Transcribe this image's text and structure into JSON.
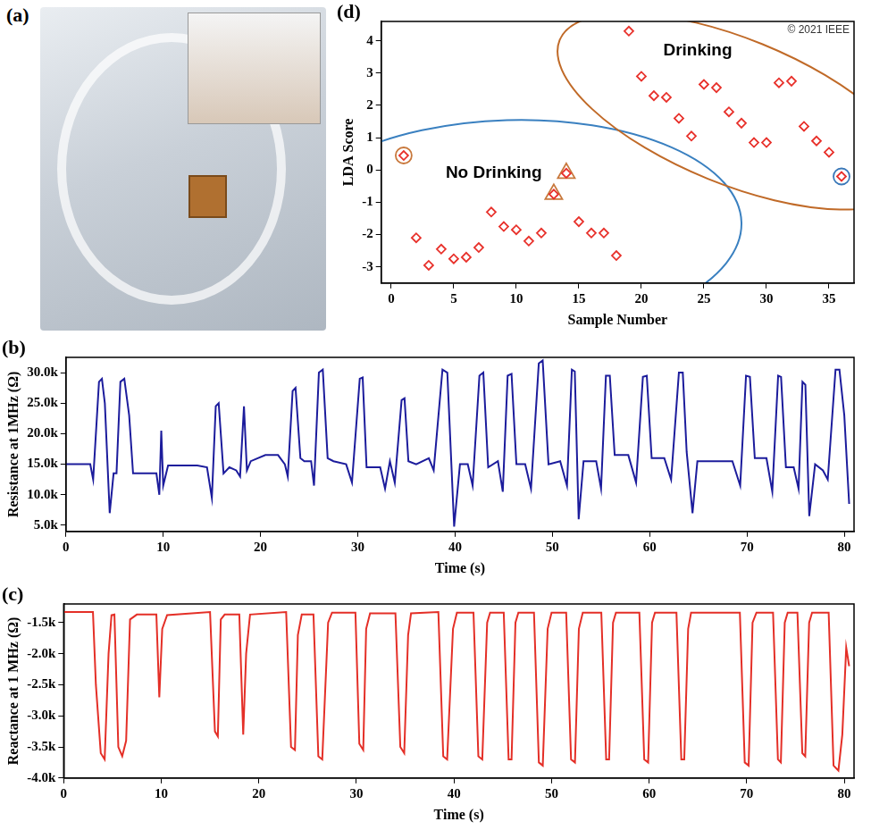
{
  "chart_data": [
    {
      "panel": "(a)",
      "type": "photo"
    },
    {
      "panel": "(b)",
      "type": "line",
      "y_label": "Resistance at 1MHz (Ω)",
      "x_label": "Time (s)",
      "color": "#1c1c9c",
      "grid": false,
      "xlim": [
        0,
        81
      ],
      "xticks": [
        0,
        10,
        20,
        30,
        40,
        50,
        60,
        70,
        80
      ],
      "ylim": [
        4000,
        32500
      ],
      "yticks": [
        {
          "value": 5000,
          "label": "5.0k"
        },
        {
          "value": 10000,
          "label": "10.0k"
        },
        {
          "value": 15000,
          "label": "15.0k"
        },
        {
          "value": 20000,
          "label": "20.0k"
        },
        {
          "value": 25000,
          "label": "25.0k"
        },
        {
          "value": 30000,
          "label": "30.0k"
        }
      ],
      "series": [
        {
          "color": "#1c1c9c",
          "x": [
            0,
            2.5,
            2.8,
            3.4,
            3.7,
            4.0,
            4.5,
            4.9,
            5.2,
            5.6,
            6.0,
            6.5,
            6.9,
            8.5,
            9.3,
            9.6,
            9.8,
            10.0,
            10.5,
            13.5,
            14.5,
            15.0,
            15.4,
            15.7,
            16.2,
            16.8,
            17.5,
            17.9,
            18.3,
            18.6,
            19.0,
            20.5,
            21.8,
            22.5,
            22.8,
            23.3,
            23.6,
            24.1,
            24.5,
            25.2,
            25.5,
            26.0,
            26.4,
            26.9,
            27.5,
            28.8,
            29.4,
            30.2,
            30.5,
            30.9,
            31.5,
            32.3,
            32.8,
            33.3,
            33.8,
            34.5,
            34.8,
            35.2,
            36.0,
            37.3,
            37.8,
            38.7,
            39.2,
            39.9,
            40.5,
            41.3,
            41.8,
            42.5,
            42.9,
            43.4,
            44.4,
            44.9,
            45.4,
            45.8,
            46.3,
            47.2,
            47.8,
            48.6,
            49.0,
            49.6,
            50.8,
            51.5,
            52.0,
            52.3,
            52.7,
            53.2,
            54.5,
            55.0,
            55.5,
            55.9,
            56.4,
            57.8,
            58.6,
            59.3,
            59.7,
            60.2,
            61.5,
            62.2,
            63.0,
            63.4,
            63.8,
            64.4,
            64.9,
            68.5,
            69.3,
            69.9,
            70.3,
            70.8,
            72.0,
            72.6,
            73.2,
            73.5,
            74.0,
            74.8,
            75.3,
            75.7,
            76.0,
            76.4,
            77.0,
            77.8,
            78.3,
            79.1,
            79.5,
            80.0,
            80.5
          ],
          "values": [
            15000,
            15000,
            12500,
            28500,
            29000,
            25000,
            7000,
            13500,
            13500,
            28500,
            29000,
            23000,
            13500,
            13500,
            13500,
            10000,
            20500,
            11500,
            14800,
            14800,
            14500,
            9500,
            24500,
            25000,
            13500,
            14500,
            14000,
            13000,
            24500,
            14000,
            15500,
            16500,
            16500,
            15000,
            13000,
            27000,
            27500,
            16000,
            15500,
            15500,
            11500,
            30000,
            30500,
            16000,
            15500,
            15000,
            12000,
            29000,
            29200,
            14500,
            14500,
            14500,
            11000,
            15500,
            12000,
            25500,
            25800,
            15500,
            15000,
            16000,
            14000,
            30500,
            30000,
            4800,
            15000,
            15000,
            11500,
            29500,
            30000,
            14500,
            15500,
            10500,
            29500,
            29800,
            15000,
            15000,
            11000,
            31500,
            32000,
            15000,
            15500,
            11500,
            30500,
            30200,
            6000,
            15500,
            15500,
            11000,
            29500,
            29500,
            16500,
            16500,
            12000,
            29300,
            29500,
            16000,
            16000,
            12500,
            30000,
            30000,
            17000,
            7000,
            15500,
            15500,
            11500,
            29500,
            29300,
            16000,
            16000,
            10500,
            29500,
            29300,
            14500,
            14500,
            11000,
            28500,
            28000,
            6500,
            15000,
            14000,
            12500,
            30500,
            30500,
            23000,
            8500
          ]
        }
      ]
    },
    {
      "panel": "(c)",
      "type": "line",
      "y_label": "Reactance at 1 MHz (Ω)",
      "x_label": "Time (s)",
      "color": "#e42f27",
      "grid": false,
      "xlim": [
        0,
        81
      ],
      "xticks": [
        0,
        10,
        20,
        30,
        40,
        50,
        60,
        70,
        80
      ],
      "ylim": [
        -4000,
        -1200
      ],
      "yticks": [
        {
          "value": -1500,
          "label": "-1.5k"
        },
        {
          "value": -2000,
          "label": "-2.0k"
        },
        {
          "value": -2500,
          "label": "-2.5k"
        },
        {
          "value": -3000,
          "label": "-3.0k"
        },
        {
          "value": -3500,
          "label": "-3.5k"
        },
        {
          "value": -4000,
          "label": "-4.0k"
        }
      ],
      "series": [
        {
          "color": "#e42f27",
          "x": [
            0,
            3.0,
            3.3,
            3.8,
            4.2,
            4.6,
            4.9,
            5.2,
            5.6,
            6.0,
            6.4,
            6.8,
            7.5,
            9.5,
            9.8,
            10.1,
            10.6,
            15.0,
            15.5,
            15.8,
            16.1,
            16.5,
            18.0,
            18.4,
            18.7,
            19.1,
            22.8,
            23.3,
            23.7,
            24.0,
            24.4,
            25.6,
            26.1,
            26.5,
            27.1,
            27.5,
            29.9,
            30.3,
            30.7,
            31.0,
            31.4,
            34.0,
            34.5,
            34.9,
            35.3,
            35.6,
            38.4,
            38.9,
            39.3,
            39.9,
            40.3,
            42.0,
            42.5,
            42.9,
            43.4,
            43.7,
            45.1,
            45.6,
            45.9,
            46.3,
            46.6,
            48.2,
            48.7,
            49.1,
            49.6,
            50.0,
            51.5,
            52.0,
            52.4,
            52.8,
            53.2,
            55.1,
            55.6,
            55.9,
            56.3,
            56.6,
            59.0,
            59.5,
            59.9,
            60.3,
            60.6,
            62.8,
            63.3,
            63.6,
            64.0,
            64.3,
            69.3,
            69.8,
            70.2,
            70.6,
            71.0,
            72.7,
            73.2,
            73.5,
            73.9,
            74.2,
            75.2,
            75.7,
            76.0,
            76.4,
            76.7,
            78.4,
            78.9,
            79.4,
            79.8,
            80.2,
            80.5
          ],
          "values": [
            -1330,
            -1330,
            -2500,
            -3600,
            -3700,
            -2000,
            -1380,
            -1370,
            -3500,
            -3650,
            -3400,
            -1450,
            -1370,
            -1370,
            -2700,
            -1600,
            -1380,
            -1330,
            -3250,
            -3330,
            -1450,
            -1370,
            -1370,
            -3300,
            -2000,
            -1370,
            -1330,
            -3500,
            -3550,
            -1700,
            -1370,
            -1370,
            -3650,
            -3700,
            -1500,
            -1340,
            -1340,
            -3450,
            -3550,
            -1600,
            -1350,
            -1350,
            -3500,
            -3600,
            -1700,
            -1350,
            -1330,
            -3650,
            -3700,
            -1600,
            -1340,
            -1340,
            -3650,
            -3700,
            -1500,
            -1340,
            -1340,
            -3700,
            -3700,
            -1500,
            -1340,
            -1340,
            -3750,
            -3800,
            -1600,
            -1340,
            -1340,
            -3700,
            -3750,
            -1600,
            -1340,
            -1340,
            -3700,
            -3700,
            -1500,
            -1340,
            -1340,
            -3700,
            -3750,
            -1500,
            -1340,
            -1340,
            -3700,
            -3700,
            -1600,
            -1340,
            -1340,
            -3750,
            -3800,
            -1500,
            -1340,
            -1340,
            -3700,
            -3750,
            -1500,
            -1340,
            -1340,
            -3600,
            -3650,
            -1500,
            -1340,
            -1340,
            -3800,
            -3880,
            -3300,
            -1900,
            -2200
          ]
        }
      ]
    },
    {
      "panel": "(d)",
      "type": "scatter",
      "y_label": "LDA Score",
      "x_label": "Sample Number",
      "grid": false,
      "xlim": [
        -0.8,
        37
      ],
      "xticks": [
        0,
        5,
        10,
        15,
        20,
        25,
        30,
        35
      ],
      "ylim": [
        -3.5,
        4.6
      ],
      "yticks": [
        -3,
        -2,
        -1,
        0,
        1,
        2,
        3,
        4
      ],
      "annotations": [
        "© 2021 IEEE"
      ],
      "series": [
        {
          "color": "#e8302a",
          "marker": "diamond",
          "x": [
            1,
            2,
            3,
            4,
            5,
            6,
            7,
            8,
            9,
            10,
            11,
            12,
            13,
            14,
            15,
            16,
            17,
            18,
            19,
            20,
            21,
            22,
            23,
            24,
            25,
            26,
            27,
            28,
            29,
            30,
            31,
            32,
            33,
            34,
            35,
            36
          ],
          "values": [
            0.45,
            -2.1,
            -2.95,
            -2.45,
            -2.75,
            -2.7,
            -2.4,
            -1.3,
            -1.75,
            -1.85,
            -2.2,
            -1.95,
            -0.75,
            -0.1,
            -1.6,
            -1.95,
            -1.95,
            -2.65,
            4.3,
            2.9,
            2.3,
            2.25,
            1.6,
            1.05,
            2.65,
            2.55,
            1.8,
            1.45,
            0.85,
            0.85,
            2.7,
            2.75,
            1.35,
            0.9,
            0.55,
            -0.2
          ]
        },
        {
          "color": "#c8783c",
          "marker": "circle",
          "x": [
            1
          ],
          "values": [
            0.45
          ]
        },
        {
          "color": "#c8783c",
          "marker": "triangle",
          "x": [
            13,
            14
          ],
          "values": [
            -0.75,
            -0.1
          ]
        },
        {
          "color": "#3a78b8",
          "marker": "circle",
          "x": [
            36
          ],
          "values": [
            -0.2
          ]
        }
      ],
      "groups": [
        {
          "label": "No Drinking",
          "color": "#3a80c0",
          "samples": [
            1,
            18
          ]
        },
        {
          "label": "Drinking",
          "color": "#c06a28",
          "samples": [
            19,
            36
          ]
        }
      ]
    }
  ]
}
